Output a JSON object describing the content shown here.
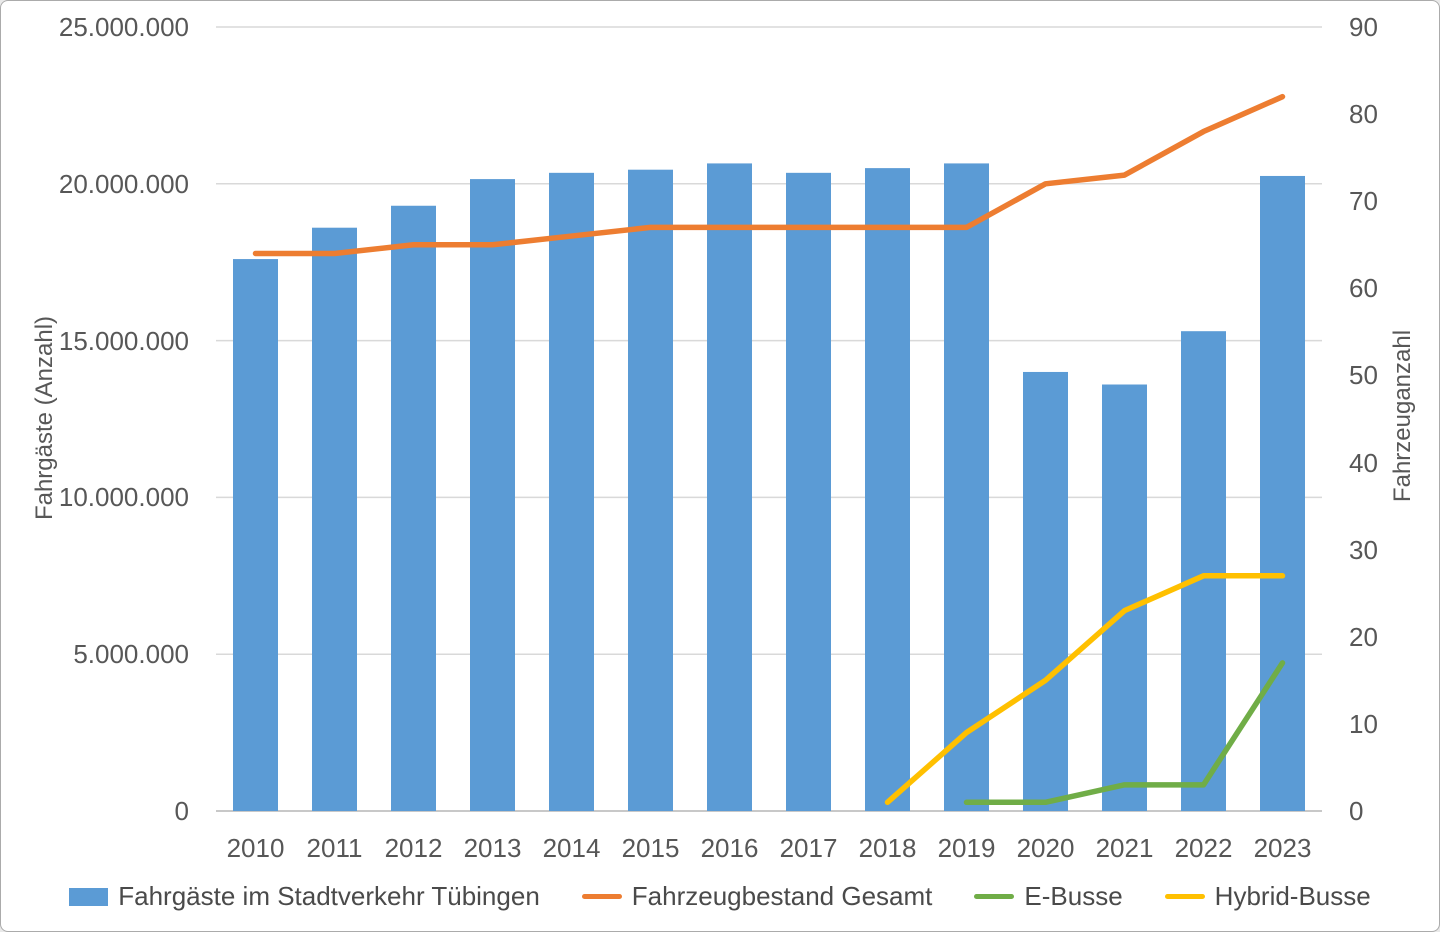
{
  "chart_data": {
    "type": "bar",
    "subtype": "combo-bar-line-dual-axis",
    "categories": [
      "2010",
      "2011",
      "2012",
      "2013",
      "2014",
      "2015",
      "2016",
      "2017",
      "2018",
      "2019",
      "2020",
      "2021",
      "2022",
      "2023"
    ],
    "series": [
      {
        "name": "Fahrgäste im Stadtverkehr Tübingen",
        "type": "bar",
        "axis": "left",
        "color": "#5B9BD5",
        "values": [
          17600000,
          18600000,
          19300000,
          20150000,
          20350000,
          20450000,
          20650000,
          20350000,
          20500000,
          20650000,
          14000000,
          13600000,
          15300000,
          20250000
        ]
      },
      {
        "name": "Fahrzeugbestand Gesamt",
        "type": "line",
        "axis": "right",
        "color": "#ED7D31",
        "values": [
          64,
          64,
          65,
          65,
          66,
          67,
          67,
          67,
          67,
          67,
          72,
          73,
          78,
          82
        ]
      },
      {
        "name": "E-Busse",
        "type": "line",
        "axis": "right",
        "color": "#70AD47",
        "values": [
          null,
          null,
          null,
          null,
          null,
          null,
          null,
          null,
          null,
          1,
          1,
          3,
          3,
          17
        ]
      },
      {
        "name": "Hybrid-Busse",
        "type": "line",
        "axis": "right",
        "color": "#FFC000",
        "values": [
          null,
          null,
          null,
          null,
          null,
          null,
          null,
          null,
          1,
          9,
          15,
          23,
          27,
          27
        ]
      }
    ],
    "left_axis": {
      "title": "Fahrgäste (Anzahl)",
      "min": 0,
      "max": 25000000,
      "tick_step": 5000000,
      "tick_labels": [
        "0",
        "5.000.000",
        "10.000.000",
        "15.000.000",
        "20.000.000",
        "25.000.000"
      ]
    },
    "right_axis": {
      "title": "Fahrzeuganzahl",
      "min": 0,
      "max": 90,
      "tick_step": 10,
      "tick_labels": [
        "0",
        "10",
        "20",
        "30",
        "40",
        "50",
        "60",
        "70",
        "80",
        "90"
      ]
    },
    "grid": true,
    "legend_position": "bottom",
    "gridline_color": "#D9D9D9",
    "axis_line_color": "#C8C8C8"
  }
}
